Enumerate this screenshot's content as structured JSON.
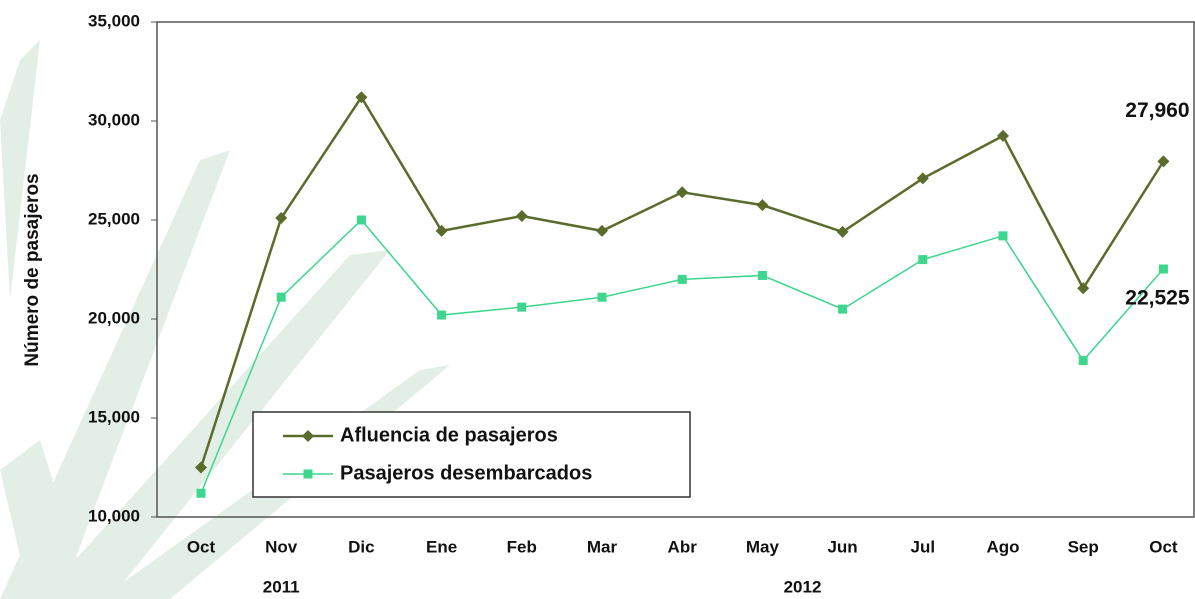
{
  "chart_data": {
    "type": "line",
    "ylabel": "Número de pasajeros",
    "categories": [
      "Oct",
      "Nov",
      "Dic",
      "Ene",
      "Feb",
      "Mar",
      "Abr",
      "May",
      "Jun",
      "Jul",
      "Ago",
      "Sep",
      "Oct"
    ],
    "groups": [
      {
        "label": "2011",
        "from": 0,
        "to": 2
      },
      {
        "label": "2012",
        "from": 3,
        "to": 12
      }
    ],
    "series": [
      {
        "name": "Afluencia de pasajeros",
        "color": "#5b6b2b",
        "marker": "diamond",
        "values": [
          12500,
          25100,
          31200,
          24450,
          25200,
          24450,
          26400,
          25750,
          24400,
          27100,
          29250,
          21550,
          27960
        ],
        "value_labels": [
          null,
          null,
          null,
          null,
          null,
          null,
          null,
          null,
          null,
          null,
          null,
          null,
          "27,960"
        ]
      },
      {
        "name": "Pasajeros desembarcados",
        "color": "#3dd68c",
        "marker": "square",
        "values": [
          11200,
          21100,
          25000,
          20200,
          20600,
          21100,
          22000,
          22200,
          20500,
          23000,
          24200,
          17900,
          22525
        ],
        "value_labels": [
          null,
          null,
          null,
          null,
          null,
          null,
          null,
          null,
          null,
          null,
          null,
          null,
          "22,525"
        ]
      }
    ],
    "ylim": [
      10000,
      35000
    ],
    "yticks": [
      {
        "value": 10000,
        "label": "10,000"
      },
      {
        "value": 15000,
        "label": "15,000"
      },
      {
        "value": 20000,
        "label": "20,000"
      },
      {
        "value": 25000,
        "label": "25,000"
      },
      {
        "value": 30000,
        "label": "30,000"
      },
      {
        "value": 35000,
        "label": "35,000"
      }
    ],
    "legend": "lower left"
  }
}
